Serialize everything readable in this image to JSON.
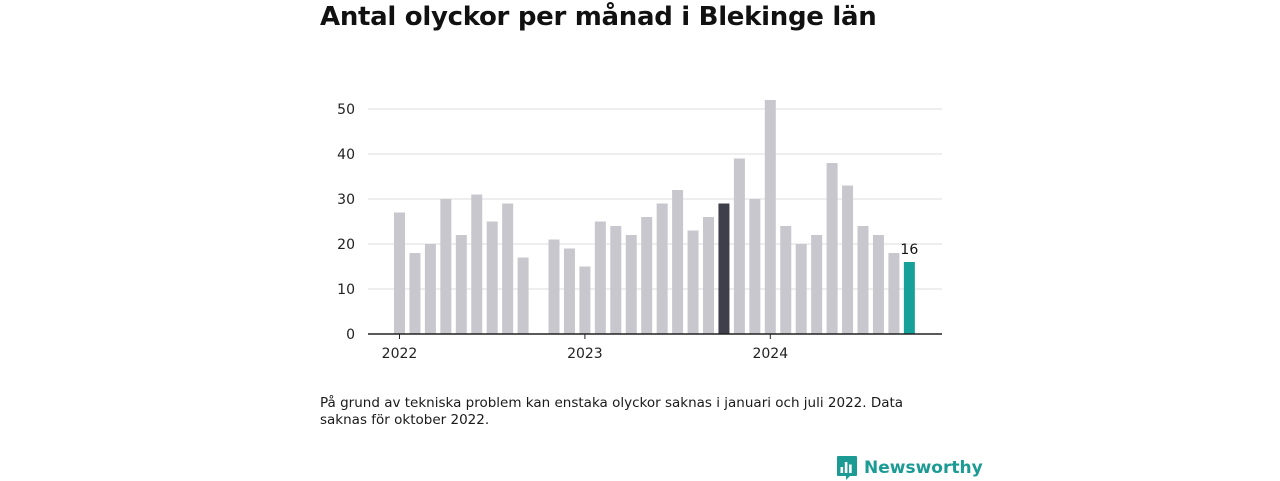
{
  "title": "Antal olyckor per månad i Blekinge län",
  "note": "På grund av tekniska problem kan enstaka olyckor saknas i januari och juli 2022. Data saknas för oktober 2022.",
  "brand": {
    "name": "Newsworthy",
    "icon": "bar-chart-speech-bubble-icon"
  },
  "colors": {
    "default_bar": "#c8c7ce",
    "highlight_bar": "#3f3f4b",
    "latest_bar": "#15a19a",
    "axis": "#222222",
    "grid": "#dddddd",
    "brand": "#1c9b95"
  },
  "chart_data": {
    "type": "bar",
    "ylim": [
      0,
      55
    ],
    "yticks": [
      0,
      10,
      20,
      30,
      40,
      50
    ],
    "xticks": [
      {
        "label": "2022",
        "index": 0
      },
      {
        "label": "2023",
        "index": 12
      },
      {
        "label": "2024",
        "index": 24
      }
    ],
    "grid": true,
    "bars": [
      {
        "month": "2022-01",
        "value": 27
      },
      {
        "month": "2022-02",
        "value": 18
      },
      {
        "month": "2022-03",
        "value": 20
      },
      {
        "month": "2022-04",
        "value": 30
      },
      {
        "month": "2022-05",
        "value": 22
      },
      {
        "month": "2022-06",
        "value": 31
      },
      {
        "month": "2022-07",
        "value": 25
      },
      {
        "month": "2022-08",
        "value": 29
      },
      {
        "month": "2022-09",
        "value": 17
      },
      {
        "month": "2022-10",
        "value": null
      },
      {
        "month": "2022-11",
        "value": 21
      },
      {
        "month": "2022-12",
        "value": 19
      },
      {
        "month": "2023-01",
        "value": 15
      },
      {
        "month": "2023-02",
        "value": 25
      },
      {
        "month": "2023-03",
        "value": 24
      },
      {
        "month": "2023-04",
        "value": 22
      },
      {
        "month": "2023-05",
        "value": 26
      },
      {
        "month": "2023-06",
        "value": 29
      },
      {
        "month": "2023-07",
        "value": 32
      },
      {
        "month": "2023-08",
        "value": 23
      },
      {
        "month": "2023-09",
        "value": 26
      },
      {
        "month": "2023-10",
        "value": 29,
        "highlight": "dark"
      },
      {
        "month": "2023-11",
        "value": 39
      },
      {
        "month": "2023-12",
        "value": 30
      },
      {
        "month": "2024-01",
        "value": 52
      },
      {
        "month": "2024-02",
        "value": 24
      },
      {
        "month": "2024-03",
        "value": 20
      },
      {
        "month": "2024-04",
        "value": 22
      },
      {
        "month": "2024-05",
        "value": 38
      },
      {
        "month": "2024-06",
        "value": 33
      },
      {
        "month": "2024-07",
        "value": 24
      },
      {
        "month": "2024-08",
        "value": 22
      },
      {
        "month": "2024-09",
        "value": 18
      },
      {
        "month": "2024-10",
        "value": 16,
        "highlight": "latest"
      }
    ],
    "value_label": "16"
  }
}
